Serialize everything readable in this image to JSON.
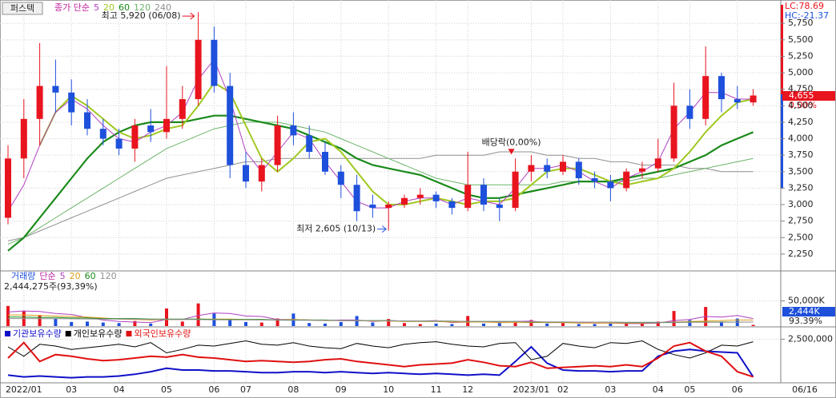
{
  "stock_name": "퍼스텍",
  "chart_data": [
    {
      "type": "candlestick",
      "legend_title": "종가 단순",
      "open": [
        2800,
        3700,
        4300,
        4800,
        4700,
        4400,
        4150,
        4000,
        3850,
        4200,
        4100,
        4300,
        4600,
        5500,
        4800,
        3600,
        3350,
        3600,
        4200,
        4050,
        3800,
        3500,
        3300,
        3000,
        2950,
        3000,
        3100,
        3150,
        3050,
        2950,
        3300,
        3000,
        2950,
        3500,
        3600,
        3500,
        3650,
        3400,
        3350,
        3250,
        3500,
        3550,
        3700,
        4500,
        4300,
        4950,
        4600,
        4550
      ],
      "high": [
        3900,
        4600,
        5450,
        5200,
        4900,
        4600,
        4300,
        4150,
        4300,
        4450,
        5100,
        4800,
        5920,
        5700,
        5000,
        3800,
        3700,
        4350,
        4400,
        4200,
        3950,
        3600,
        3450,
        3150,
        3050,
        3150,
        3250,
        3200,
        3100,
        3800,
        3400,
        3100,
        3700,
        3750,
        3700,
        3750,
        3700,
        3500,
        3450,
        3550,
        3650,
        4000,
        4850,
        4750,
        5400,
        5000,
        4800,
        4750
      ],
      "low": [
        2700,
        3400,
        3900,
        4400,
        4200,
        4050,
        3900,
        3750,
        3650,
        3950,
        4000,
        4150,
        4500,
        4700,
        3400,
        3250,
        3200,
        3500,
        3900,
        3700,
        3450,
        3100,
        2750,
        2800,
        2605,
        2950,
        3000,
        2950,
        2850,
        2900,
        2900,
        2750,
        2900,
        3350,
        3400,
        3450,
        3300,
        3250,
        3050,
        3200,
        3400,
        3500,
        3650,
        4150,
        4200,
        4400,
        4450,
        4500
      ],
      "close": [
        3700,
        4300,
        4800,
        4700,
        4400,
        4150,
        4000,
        3850,
        4200,
        4100,
        4300,
        4600,
        5500,
        4800,
        3600,
        3350,
        3600,
        4200,
        4050,
        3800,
        3500,
        3300,
        2900,
        2950,
        3000,
        3100,
        3150,
        3050,
        2950,
        3300,
        3000,
        2950,
        3500,
        3600,
        3500,
        3650,
        3400,
        3350,
        3250,
        3500,
        3550,
        3700,
        4500,
        4300,
        4950,
        4600,
        4550,
        4655
      ],
      "up_color": "#e8141e",
      "down_color": "#1e50dc",
      "series": [
        {
          "name": "5",
          "color": "#b040c0",
          "values": [
            2900,
            3300,
            3900,
            4400,
            4600,
            4450,
            4200,
            4000,
            3950,
            4100,
            4200,
            4400,
            4900,
            5200,
            4600,
            3800,
            3500,
            3800,
            4100,
            4000,
            3650,
            3350,
            3050,
            2950,
            2950,
            3050,
            3100,
            3100,
            3000,
            3100,
            3050,
            3000,
            3250,
            3550,
            3550,
            3600,
            3500,
            3350,
            3250,
            3400,
            3500,
            3650,
            4150,
            4400,
            4700,
            4700,
            4600,
            4600
          ]
        },
        {
          "name": "20",
          "color": "#a0c820",
          "values": [
            null,
            null,
            3900,
            4400,
            4650,
            4500,
            4300,
            4100,
            4000,
            4050,
            4150,
            4200,
            4500,
            4850,
            4700,
            4200,
            3700,
            3500,
            3700,
            3950,
            4000,
            3800,
            3500,
            3200,
            3000,
            3000,
            3050,
            3100,
            3050,
            3000,
            3050,
            3050,
            3100,
            3300,
            3500,
            3550,
            3550,
            3450,
            3350,
            3300,
            3350,
            3400,
            3550,
            3800,
            4100,
            4350,
            4550,
            4600
          ]
        },
        {
          "name": "60",
          "color": "#1a8a1a",
          "values": [
            2300,
            2500,
            2800,
            3100,
            3400,
            3700,
            3950,
            4100,
            4200,
            4250,
            4250,
            4250,
            4300,
            4350,
            4350,
            4300,
            4250,
            4200,
            4150,
            4050,
            3950,
            3850,
            3700,
            3600,
            3550,
            3500,
            3450,
            3350,
            3250,
            3150,
            3100,
            3100,
            3150,
            3200,
            3250,
            3300,
            3350,
            3350,
            3350,
            3400,
            3450,
            3500,
            3550,
            3650,
            3750,
            3900,
            4000,
            4100
          ]
        },
        {
          "name": "120",
          "color": "#6cb46c",
          "values": [
            2400,
            2500,
            2650,
            2800,
            2950,
            3100,
            3250,
            3400,
            3550,
            3700,
            3850,
            3950,
            4050,
            4150,
            4200,
            4250,
            4250,
            4250,
            4200,
            4150,
            4100,
            4000,
            3900,
            3800,
            3700,
            3600,
            3500,
            3400,
            3350,
            3300,
            3300,
            3300,
            3300,
            3300,
            3300,
            3350,
            3350,
            3350,
            3350,
            3350,
            3400,
            3400,
            3450,
            3500,
            3550,
            3600,
            3650,
            3700
          ]
        },
        {
          "name": "240",
          "color": "#909090",
          "values": [
            2450,
            2500,
            2600,
            2700,
            2800,
            2900,
            3000,
            3100,
            3200,
            3300,
            3400,
            3450,
            3500,
            3550,
            3600,
            3650,
            3650,
            3700,
            3700,
            3700,
            3700,
            3700,
            3700,
            3700,
            3700,
            3700,
            3700,
            3750,
            3750,
            3750,
            3750,
            3800,
            3800,
            3800,
            3750,
            3750,
            3700,
            3700,
            3650,
            3650,
            3600,
            3600,
            3600,
            3550,
            3550,
            3500,
            3500,
            3500
          ]
        }
      ],
      "ylim": [
        2006,
        6104
      ],
      "yticks": [
        {
          "value": 2250,
          "label": "2,250"
        },
        {
          "value": 2500,
          "label": "2,500"
        },
        {
          "value": 2750,
          "label": "2,750"
        },
        {
          "value": 3000,
          "label": "3,000"
        },
        {
          "value": 3250,
          "label": "3,250"
        },
        {
          "value": 3500,
          "label": "3,500"
        },
        {
          "value": 3750,
          "label": "3,750"
        },
        {
          "value": 4000,
          "label": "4,000"
        },
        {
          "value": 4250,
          "label": "4,250"
        },
        {
          "value": 4500,
          "label": "4,500"
        },
        {
          "value": 4750,
          "label": "4,750"
        },
        {
          "value": 5000,
          "label": "5,000"
        },
        {
          "value": 5250,
          "label": "5,250"
        },
        {
          "value": 5500,
          "label": "5,500"
        },
        {
          "value": 5750,
          "label": "5,750"
        }
      ],
      "grid": true,
      "max_label": "최고 5,920 (06/08)",
      "min_label": "최저 2,605 (10/13)",
      "dividend_label": "배당락(0,00%)",
      "current_price_label": "4,655",
      "change_label": "0.00%",
      "lc_label": "LC:78.69",
      "hc_label": "HC:-21.37"
    },
    {
      "type": "bar",
      "name": "거래량",
      "legend_title": "단순",
      "values": [
        40000,
        30000,
        22000,
        15000,
        8000,
        9000,
        7000,
        6000,
        10000,
        5000,
        35000,
        9000,
        45000,
        25000,
        12000,
        8000,
        7000,
        15000,
        25000,
        6000,
        5000,
        8000,
        20000,
        7000,
        14000,
        6000,
        4000,
        5000,
        4000,
        20000,
        5000,
        6000,
        9000,
        12000,
        5000,
        6000,
        4000,
        4000,
        5000,
        6000,
        7000,
        9000,
        30000,
        12000,
        38000,
        9000,
        15000,
        2444
      ],
      "series": [
        {
          "name": "5",
          "color": "#b040c0",
          "values": [
            28000,
            30000,
            29000,
            25000,
            23000,
            17000,
            12000,
            9000,
            8000,
            7000,
            13000,
            13000,
            21000,
            26000,
            25000,
            20000,
            19000,
            13000,
            13000,
            12000,
            11000,
            12000,
            12000,
            9000,
            11000,
            10000,
            10000,
            11000,
            7000,
            8000,
            8000,
            8000,
            9000,
            10000,
            7000,
            7000,
            7000,
            6000,
            6000,
            5000,
            5000,
            6000,
            11000,
            13000,
            19000,
            18000,
            21000,
            15000
          ]
        },
        {
          "name": "20",
          "color": "#e0a020",
          "values": [
            22000,
            22000,
            21000,
            20000,
            19000,
            18000,
            16000,
            14000,
            13000,
            12000,
            13000,
            13000,
            14000,
            14000,
            14000,
            13000,
            13000,
            12000,
            13000,
            12000,
            11000,
            11000,
            11000,
            10000,
            10000,
            9000,
            9000,
            9000,
            8000,
            8000,
            8000,
            7000,
            7000,
            7000,
            7000,
            7000,
            6000,
            6000,
            6000,
            6000,
            6000,
            7000,
            8000,
            9000,
            10000,
            11000,
            12000,
            12000
          ]
        },
        {
          "name": "60",
          "color": "#1a8a1a",
          "values": [
            18000,
            18000,
            17000,
            17000,
            16000,
            16000,
            15000,
            15000,
            15000,
            14000,
            14000,
            14000,
            14000,
            13000,
            13000,
            13000,
            13000,
            12000,
            12000,
            12000,
            12000,
            11000,
            11000,
            11000,
            11000,
            10000,
            10000,
            10000,
            10000,
            9000,
            9000,
            9000,
            9000,
            8000,
            8000,
            8000,
            8000,
            8000,
            8000,
            7000,
            7000,
            7000,
            7000,
            8000,
            8000,
            8000,
            8000,
            8000
          ]
        },
        {
          "name": "120",
          "color": "#909090",
          "values": [
            15000,
            15000,
            14800,
            14600,
            14400,
            14200,
            14000,
            13800,
            13600,
            13400,
            13200,
            13000,
            12800,
            12600,
            12400,
            12200,
            12000,
            11800,
            11600,
            11400,
            11200,
            11000,
            10800,
            10600,
            10400,
            10200,
            10000,
            9800,
            9600,
            9400,
            9200,
            9000,
            8800,
            8600,
            8400,
            8200,
            8000,
            7900,
            7800,
            7700,
            7600,
            7500,
            7500,
            7500,
            7600,
            7700,
            7800,
            7900
          ]
        }
      ],
      "ylim": [
        0,
        108000
      ],
      "yticks": [
        {
          "value": 50000,
          "label": "50,000K"
        }
      ],
      "volume_label": "2,444,275주(93,39%)",
      "current_value_label": "2,444K",
      "current_ratio_label": "93.39%"
    },
    {
      "type": "line",
      "series": [
        {
          "name": "기관보유수량",
          "color": "#1010c8",
          "values": [
            400000,
            300000,
            350000,
            300000,
            250000,
            300000,
            300000,
            350000,
            450000,
            600000,
            800000,
            700000,
            700000,
            650000,
            650000,
            600000,
            550000,
            550000,
            600000,
            600000,
            550000,
            600000,
            550000,
            500000,
            550000,
            500000,
            450000,
            500000,
            450000,
            400000,
            450000,
            400000,
            1200000,
            2050000,
            1100000,
            700000,
            650000,
            650000,
            600000,
            650000,
            650000,
            1500000,
            1800000,
            1900000,
            1800000,
            1750000,
            1700000,
            300000
          ]
        },
        {
          "name": "개인보유수량",
          "color": "#000000",
          "values": [
            2050000,
            1500000,
            2200000,
            2100000,
            1900000,
            2000000,
            2100000,
            2200000,
            2050000,
            2300000,
            1700000,
            1900000,
            2150000,
            2100000,
            2250000,
            2400000,
            2200000,
            2150000,
            2300000,
            2100000,
            2000000,
            1950000,
            2250000,
            2100000,
            2000000,
            2200000,
            2300000,
            2350000,
            2200000,
            2100000,
            2050000,
            2250000,
            2300000,
            1300000,
            1500000,
            2250000,
            2100000,
            2000000,
            2300000,
            2250000,
            2400000,
            1900000,
            1600000,
            1400000,
            1700000,
            2150000,
            2100000,
            2350000
          ]
        },
        {
          "name": "외국인보유수량",
          "color": "#e01010",
          "values": [
            1400000,
            2300000,
            1200000,
            1600000,
            1500000,
            1350000,
            1250000,
            1300000,
            1400000,
            1500000,
            1450000,
            1600000,
            1450000,
            1400000,
            1300000,
            1200000,
            1250000,
            1200000,
            1150000,
            1200000,
            1300000,
            1350000,
            1200000,
            1100000,
            1000000,
            900000,
            1000000,
            1050000,
            1100000,
            1300000,
            1150000,
            950000,
            900000,
            1150000,
            800000,
            850000,
            900000,
            950000,
            900000,
            1000000,
            900000,
            1400000,
            2100000,
            2300000,
            1800000,
            1500000,
            600000,
            300000
          ]
        }
      ],
      "ylim": [
        0,
        3170000
      ],
      "yticks": [
        {
          "value": 2500000,
          "label": "2,500,000"
        }
      ],
      "categories": [
        null,
        "2022/01",
        null,
        null,
        "03",
        null,
        null,
        "04",
        null,
        null,
        "05",
        null,
        null,
        "06",
        null,
        "07",
        null,
        null,
        "08",
        null,
        null,
        "09",
        null,
        null,
        "10",
        null,
        null,
        "11",
        null,
        "12",
        null,
        null,
        null,
        "2023/01",
        null,
        "02",
        null,
        null,
        "03",
        null,
        null,
        "04",
        null,
        "05",
        null,
        null,
        "06",
        null
      ],
      "last_date": "06/16"
    }
  ]
}
